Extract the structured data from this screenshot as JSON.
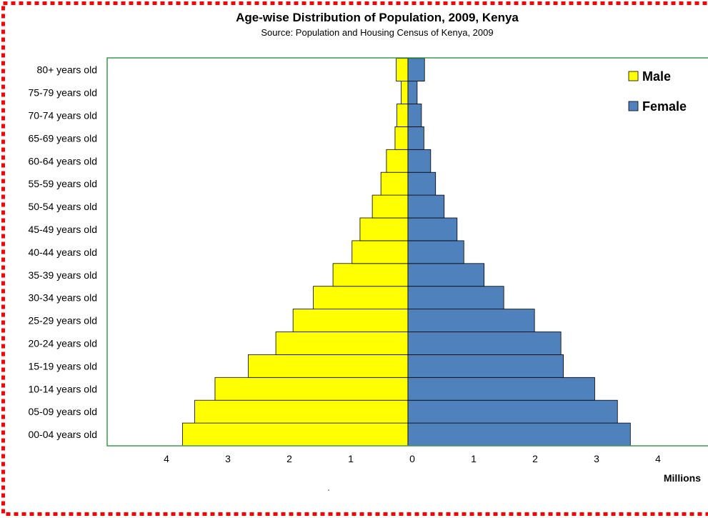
{
  "chart_data": {
    "type": "bar",
    "orientation": "horizontal",
    "layout": "population-pyramid",
    "title": "Age-wise Distribution of Population, 2009, Kenya",
    "subtitle": "Source: Population and Housing Census of Kenya, 2009",
    "xlabel": "Millions",
    "ylabel": "",
    "xlim": [
      -4,
      4
    ],
    "x_ticks": [
      {
        "value": -4,
        "label": "4"
      },
      {
        "value": -3,
        "label": "3"
      },
      {
        "value": -2,
        "label": "2"
      },
      {
        "value": -1,
        "label": "1"
      },
      {
        "value": 0,
        "label": "0"
      },
      {
        "value": 1,
        "label": "1"
      },
      {
        "value": 2,
        "label": "2"
      },
      {
        "value": 3,
        "label": "3"
      },
      {
        "value": 4,
        "label": "4"
      }
    ],
    "categories": [
      "00-04 years old",
      "05-09 years old",
      "10-14 years old",
      "15-19 years old",
      "20-24 years old",
      "25-29 years old",
      "30-34 years old",
      "35-39 years old",
      "40-44 years old",
      "45-49 years old",
      "50-54 years old",
      "55-59 years old",
      "60-64 years old",
      "65-69 years old",
      "70-74 years old",
      "75-79 years old",
      "80+ years old"
    ],
    "series": [
      {
        "name": "Male",
        "color": "#ffff00",
        "values": [
          3.67,
          3.47,
          3.14,
          2.6,
          2.15,
          1.87,
          1.54,
          1.22,
          0.91,
          0.78,
          0.58,
          0.44,
          0.35,
          0.21,
          0.18,
          0.11,
          0.19
        ]
      },
      {
        "name": "Female",
        "color": "#4f81bd",
        "values": [
          3.62,
          3.41,
          3.04,
          2.53,
          2.49,
          2.06,
          1.56,
          1.24,
          0.91,
          0.8,
          0.59,
          0.45,
          0.37,
          0.26,
          0.22,
          0.15,
          0.27
        ]
      }
    ],
    "legend_position": "top-right",
    "grid": false,
    "plot_border_color": "#3c9a4e"
  },
  "frame": {
    "border_color": "#ff0000"
  }
}
